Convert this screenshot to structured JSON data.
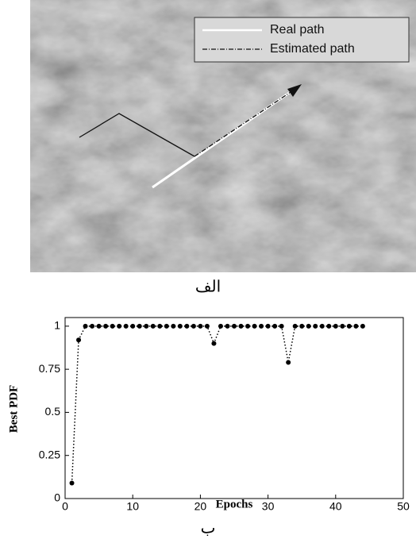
{
  "figure_a": {
    "legend": [
      "Real path",
      "Estimated path"
    ],
    "caption": "الف"
  },
  "chart_data": {
    "type": "line",
    "x_label": "Epochs",
    "y_label": "Best PDF",
    "caption": "ب",
    "x": [
      1,
      2,
      3,
      4,
      5,
      6,
      7,
      8,
      9,
      10,
      11,
      12,
      13,
      14,
      15,
      16,
      17,
      18,
      19,
      20,
      21,
      22,
      23,
      24,
      25,
      26,
      27,
      28,
      29,
      30,
      31,
      32,
      33,
      34,
      35,
      36,
      37,
      38,
      39,
      40,
      41,
      42,
      43,
      44
    ],
    "series": [
      {
        "name": "Best PDF",
        "color": "#000000",
        "values": [
          0.09,
          0.92,
          1,
          1,
          1,
          1,
          1,
          1,
          1,
          1,
          1,
          1,
          1,
          1,
          1,
          1,
          1,
          1,
          1,
          1,
          1,
          0.9,
          1,
          1,
          1,
          1,
          1,
          1,
          1,
          1,
          1,
          1,
          0.79,
          1,
          1,
          1,
          1,
          1,
          1,
          1,
          1,
          1,
          1,
          1
        ]
      }
    ],
    "xlim": [
      0,
      50
    ],
    "xticks": [
      0,
      10,
      20,
      30,
      40,
      50
    ],
    "ylim": [
      0,
      1.05
    ],
    "yticks": [
      0,
      0.25,
      0.5,
      0.75,
      1
    ]
  }
}
